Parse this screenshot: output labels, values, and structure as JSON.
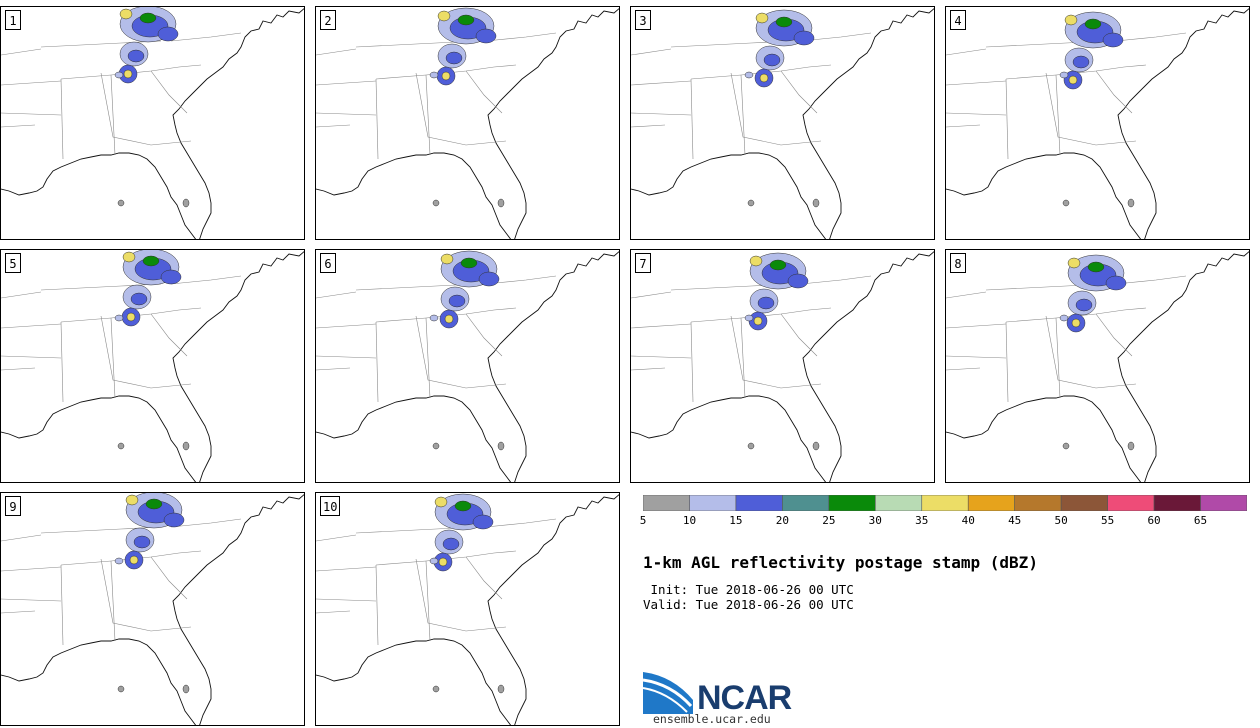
{
  "title": "1-km AGL reflectivity postage stamp (dBZ)",
  "init_line": " Init: Tue 2018-06-26 00 UTC",
  "valid_line": "Valid: Tue 2018-06-26 00 UTC",
  "logo": {
    "name": "NCAR",
    "url": "ensemble.ucar.edu"
  },
  "panels": [
    {
      "label": "1"
    },
    {
      "label": "2"
    },
    {
      "label": "3"
    },
    {
      "label": "4"
    },
    {
      "label": "5"
    },
    {
      "label": "6"
    },
    {
      "label": "7"
    },
    {
      "label": "8"
    },
    {
      "label": "9"
    },
    {
      "label": "10"
    }
  ],
  "colorbar": {
    "ticks": [
      "5",
      "10",
      "15",
      "20",
      "25",
      "30",
      "35",
      "40",
      "45",
      "50",
      "55",
      "60",
      "65"
    ],
    "colors": [
      "#a0a0a0",
      "#b4bde9",
      "#4f5ed8",
      "#4f9090",
      "#0a8a0a",
      "#b8dbb4",
      "#ecdd66",
      "#e6a31c",
      "#b5782c",
      "#8c5638",
      "#ee4c78",
      "#6a1838",
      "#b04aa8"
    ]
  }
}
